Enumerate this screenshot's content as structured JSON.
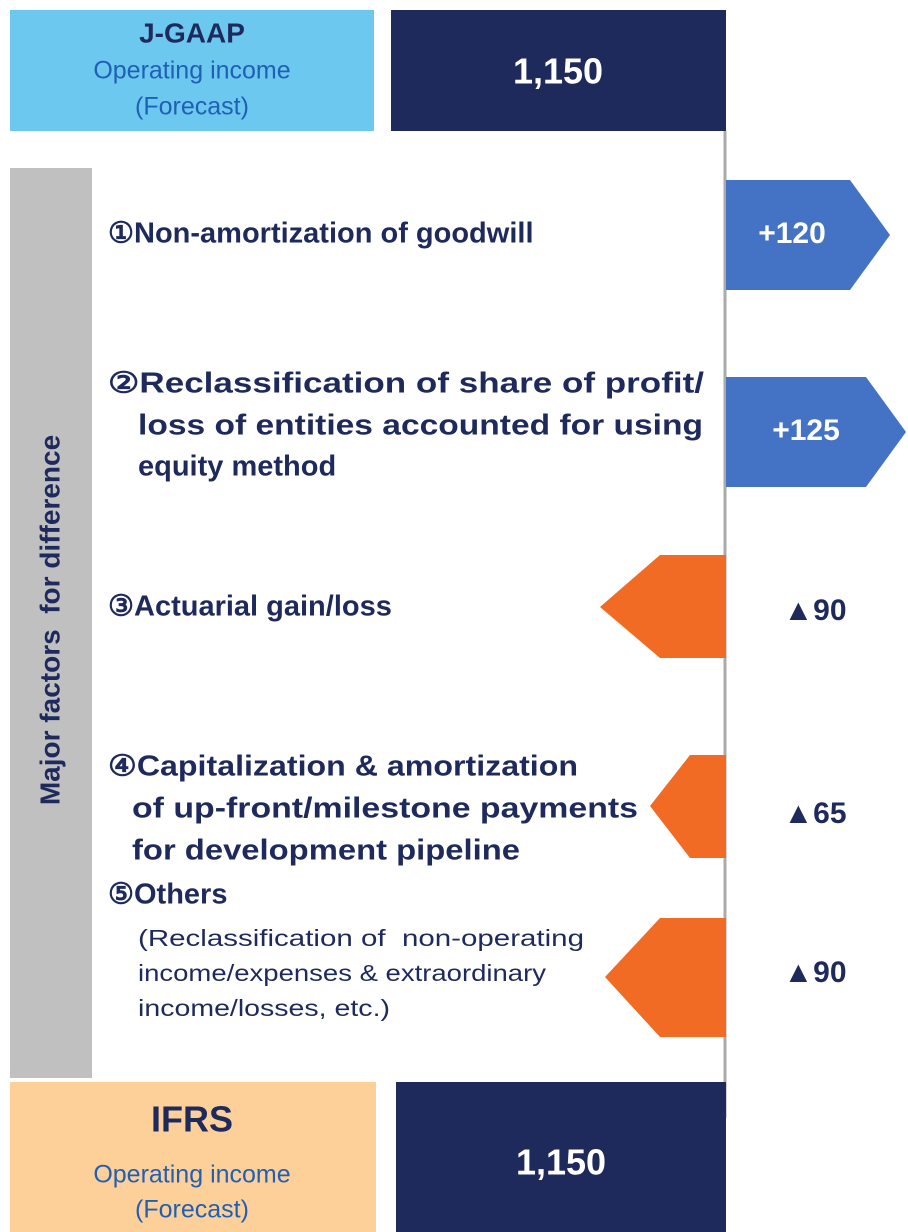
{
  "top": {
    "title": "J-GAAP",
    "line1": "Operating income",
    "line2": "(Forecast)",
    "value": "1,150"
  },
  "side_label": "Major factors  for difference",
  "items": [
    {
      "lines": [
        "①Non-amortization of goodwill"
      ],
      "value": "+120"
    },
    {
      "lines": [
        "②Reclassification of share of profit/",
        "loss of entities accounted for using",
        "equity method"
      ],
      "value": "+125"
    },
    {
      "lines": [
        "③Actuarial gain/loss"
      ],
      "value": "▲90"
    },
    {
      "lines": [
        "④Capitalization & amortization",
        "of up-front/milestone payments",
        "for development pipeline"
      ],
      "value": "▲65"
    },
    {
      "lines": [
        "⑤Others"
      ],
      "note": [
        "(Reclassification of  non-operating",
        "income/expenses & extraordinary",
        "income/losses, etc.)"
      ],
      "value": "▲90"
    }
  ],
  "bottom": {
    "title": "IFRS",
    "line1": "Operating income",
    "line2": "(Forecast)",
    "value": "1,150"
  }
}
